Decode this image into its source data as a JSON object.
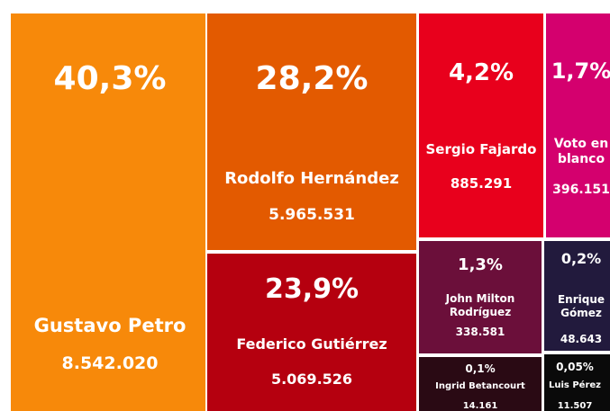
{
  "chart_data": {
    "type": "treemap",
    "categories": [
      "Gustavo Petro",
      "Rodolfo Hernández",
      "Federico Gutiérrez",
      "Sergio Fajardo",
      "Voto en blanco",
      "John Milton Rodríguez",
      "Enrique Gómez",
      "Ingrid Betancourt",
      "Luis Pérez"
    ],
    "values": [
      40.3,
      28.2,
      23.9,
      4.2,
      1.7,
      1.3,
      0.2,
      0.1,
      0.05
    ],
    "value_labels": [
      "40,3%",
      "28,2%",
      "23,9%",
      "4,2%",
      "1,7%",
      "1,3%",
      "0,2%",
      "0,1%",
      "0,05%"
    ],
    "votes": [
      8542020,
      5965531,
      5069526,
      885291,
      396151,
      338581,
      48643,
      14161,
      11507
    ],
    "vote_labels": [
      "8.542.020",
      "5.965.531",
      "5.069.526",
      "885.291",
      "396.151",
      "338.581",
      "48.643",
      "14.161",
      "11.507"
    ],
    "colors": [
      "#f7890a",
      "#e35a00",
      "#b5000f",
      "#e8001c",
      "#d4006e",
      "#6b0f3a",
      "#221a3d",
      "#2a0a14",
      "#0a0a0a"
    ]
  }
}
